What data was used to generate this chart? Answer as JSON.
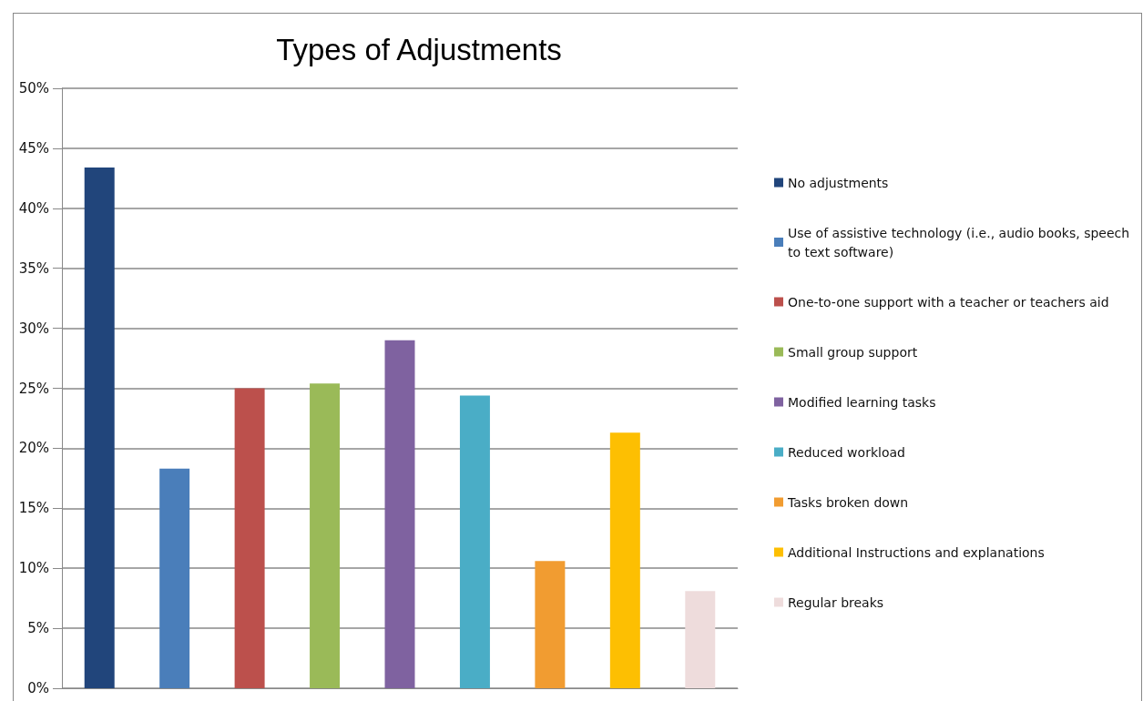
{
  "chart_data": {
    "type": "bar",
    "title": "Types of Adjustments",
    "categories": [
      null,
      null,
      null,
      null,
      null,
      null,
      null,
      null,
      null
    ],
    "series": [
      {
        "name": "No adjustments",
        "color": "#21457b",
        "values": [
          43.4,
          null,
          null,
          null,
          null,
          null,
          null,
          null,
          null
        ]
      },
      {
        "name": "Use of assistive technology (i.e., audio books, speech to text software)",
        "color": "#4a7eba",
        "values": [
          null,
          18.3,
          null,
          null,
          null,
          null,
          null,
          null,
          null
        ]
      },
      {
        "name": "One-to-one support with a teacher or teachers aid",
        "color": "#bc504c",
        "values": [
          null,
          null,
          25.0,
          null,
          null,
          null,
          null,
          null,
          null
        ]
      },
      {
        "name": "Small group support",
        "color": "#9aba58",
        "values": [
          null,
          null,
          null,
          25.4,
          null,
          null,
          null,
          null,
          null
        ]
      },
      {
        "name": "Modified learning tasks",
        "color": "#7f62a0",
        "values": [
          null,
          null,
          null,
          null,
          29.0,
          null,
          null,
          null,
          null
        ]
      },
      {
        "name": "Reduced workload",
        "color": "#4aadc6",
        "values": [
          null,
          null,
          null,
          null,
          null,
          24.4,
          null,
          null,
          null
        ]
      },
      {
        "name": "Tasks broken down",
        "color": "#f19c31",
        "values": [
          null,
          null,
          null,
          null,
          null,
          null,
          10.6,
          null,
          null
        ]
      },
      {
        "name": "Additional Instructions and explanations",
        "color": "#fdbf02",
        "values": [
          null,
          null,
          null,
          null,
          null,
          null,
          null,
          21.3,
          null
        ]
      },
      {
        "name": "Regular breaks",
        "color": "#eedcdc",
        "values": [
          null,
          null,
          null,
          null,
          null,
          null,
          null,
          null,
          8.1
        ]
      }
    ],
    "ylim": [
      0,
      50
    ],
    "yticks": [
      {
        "value": 0,
        "label": "0%"
      },
      {
        "value": 5,
        "label": "5%"
      },
      {
        "value": 10,
        "label": "10%"
      },
      {
        "value": 15,
        "label": "15%"
      },
      {
        "value": 20,
        "label": "20%"
      },
      {
        "value": 25,
        "label": "25%"
      },
      {
        "value": 30,
        "label": "30%"
      },
      {
        "value": 35,
        "label": "35%"
      },
      {
        "value": 40,
        "label": "40%"
      },
      {
        "value": 45,
        "label": "45%"
      },
      {
        "value": 50,
        "label": "50%"
      }
    ],
    "grid": "y",
    "legend": "right",
    "tick_labels": "y"
  }
}
